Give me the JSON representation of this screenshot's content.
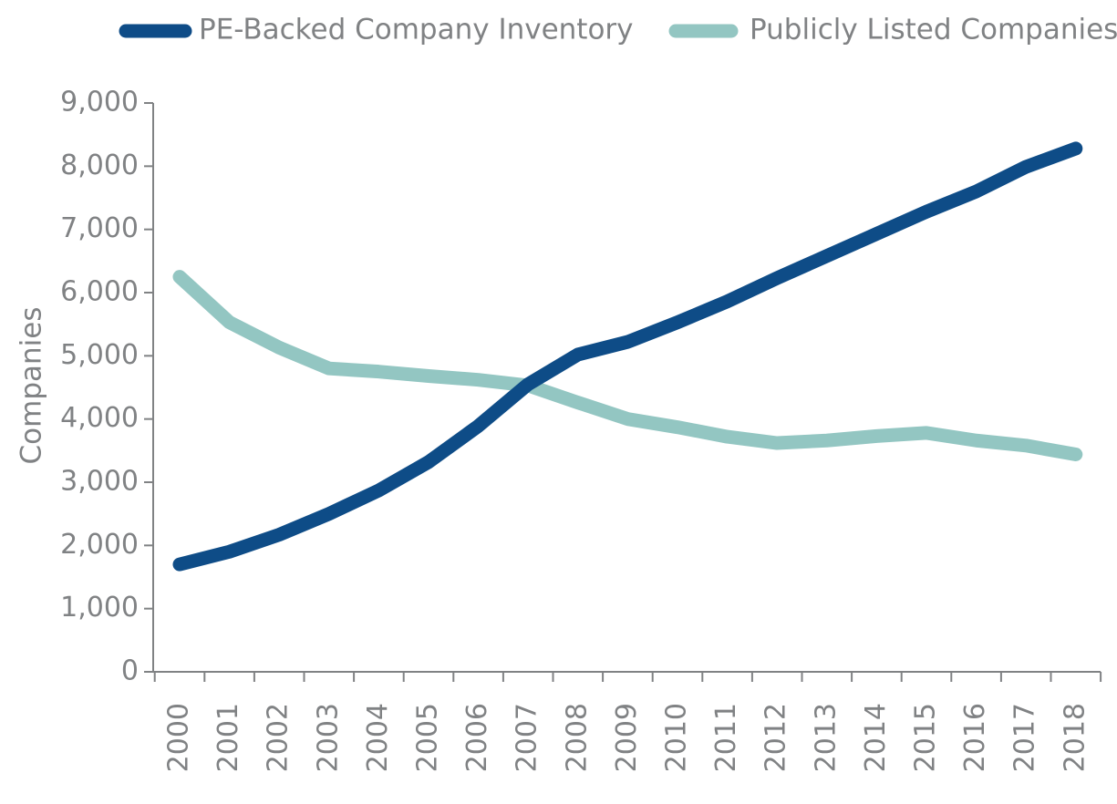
{
  "chart_data": {
    "type": "line",
    "title": "",
    "xlabel": "",
    "ylabel": "Companies",
    "ylim": [
      0,
      9000
    ],
    "yticks": [
      0,
      1000,
      2000,
      3000,
      4000,
      5000,
      6000,
      7000,
      8000,
      9000
    ],
    "ytick_labels": [
      "0",
      "1,000",
      "2,000",
      "3,000",
      "4,000",
      "5,000",
      "6,000",
      "7,000",
      "8,000",
      "9,000"
    ],
    "categories": [
      "2000",
      "2001",
      "2002",
      "2003",
      "2004",
      "2005",
      "2006",
      "2007",
      "2008",
      "2009",
      "2010",
      "2011",
      "2012",
      "2013",
      "2014",
      "2015",
      "2016",
      "2017",
      "2018"
    ],
    "series": [
      {
        "name": "PE-Backed Company Inventory",
        "color": "#0e4c87",
        "values": [
          1700,
          1900,
          2170,
          2500,
          2870,
          3320,
          3890,
          4550,
          5020,
          5220,
          5530,
          5860,
          6230,
          6580,
          6930,
          7280,
          7600,
          7990,
          8280
        ]
      },
      {
        "name": "Publicly Listed Companies",
        "color": "#93c6c2",
        "values": [
          6250,
          5530,
          5130,
          4800,
          4750,
          4680,
          4620,
          4530,
          4260,
          4000,
          3870,
          3720,
          3620,
          3660,
          3730,
          3780,
          3660,
          3580,
          3440
        ]
      }
    ],
    "grid": false,
    "legend_position": "top"
  }
}
